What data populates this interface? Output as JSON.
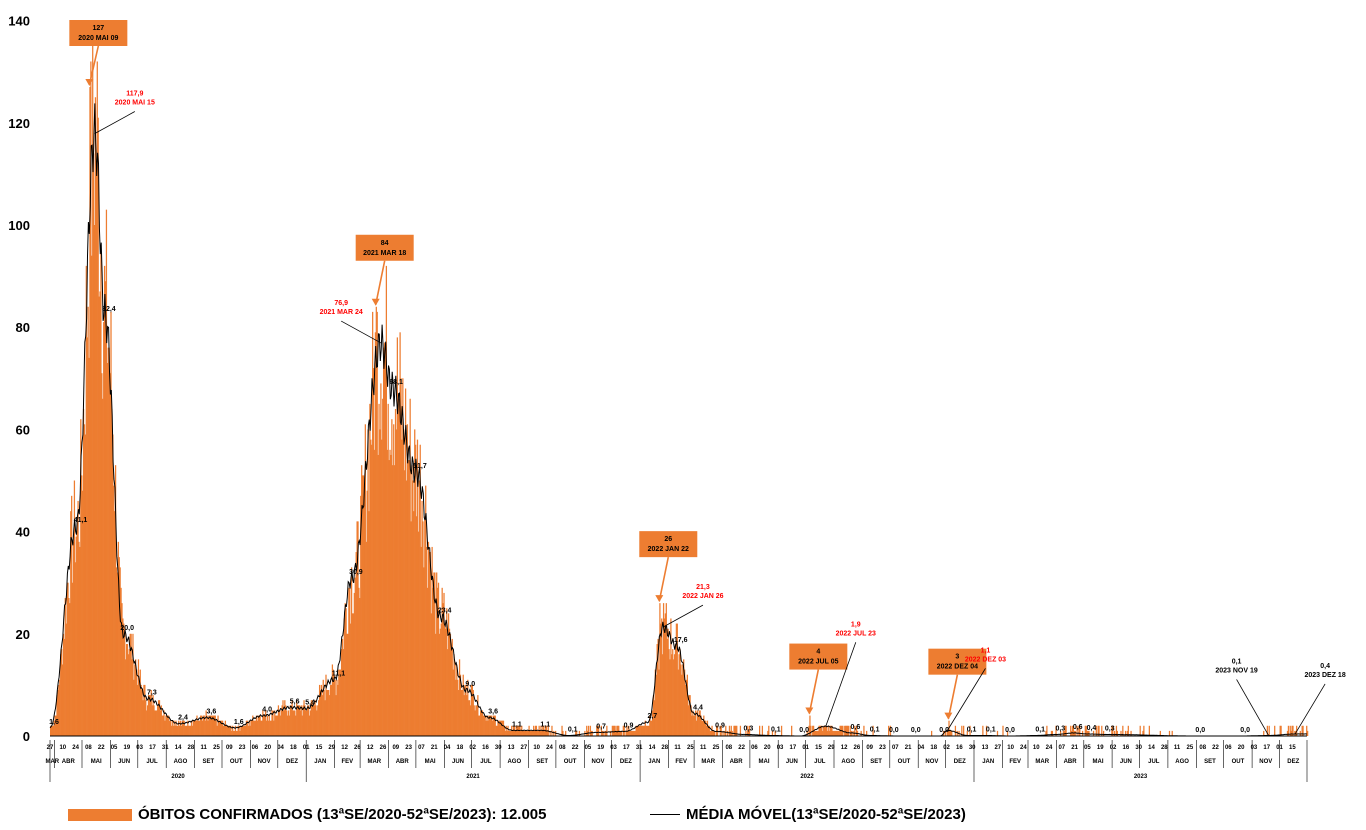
{
  "colors": {
    "bar": "#ED7D31",
    "line": "#000000",
    "callout_box": "#ED7D31",
    "callout_text": "#000000",
    "ma_label": "#FF0000"
  },
  "chart_data": {
    "type": "bar",
    "ylim": [
      0,
      140
    ],
    "yticks": [
      "0",
      "20",
      "40",
      "60",
      "80",
      "100",
      "120",
      "140"
    ],
    "grid": false,
    "legend_position": "bottom",
    "series": [
      {
        "name": "ÓBITOS CONFIRMADOS (13ªSE/2020-52ªSE/2023): 12.005",
        "type": "bar",
        "peaks": [
          {
            "date": "2020-05-09",
            "value": 127
          },
          {
            "date": "2021-03-18",
            "value": 84
          },
          {
            "date": "2022-01-22",
            "value": 26
          },
          {
            "date": "2022-07-05",
            "value": 4
          },
          {
            "date": "2022-12-04",
            "value": 3
          }
        ]
      },
      {
        "name": "MÉDIA MÓVEL(13ªSE/2020-52ªSE/2023)",
        "type": "line",
        "points": [
          [
            "2020-03-27",
            1.6
          ],
          [
            "2020-04-25",
            41.1
          ],
          [
            "2020-05-15",
            117.9
          ],
          [
            "2020-05-26",
            82.4
          ],
          [
            "2020-06-15",
            20.0
          ],
          [
            "2020-07-12",
            7.3
          ],
          [
            "2020-08-15",
            2.4
          ],
          [
            "2020-09-15",
            3.6
          ],
          [
            "2020-10-15",
            1.6
          ],
          [
            "2020-11-15",
            4.0
          ],
          [
            "2020-12-15",
            5.6
          ],
          [
            "2021-01-01",
            5.4
          ],
          [
            "2021-02-01",
            11.1
          ],
          [
            "2021-02-20",
            30.9
          ],
          [
            "2021-03-24",
            76.9
          ],
          [
            "2021-04-05",
            68.1
          ],
          [
            "2021-05-01",
            51.7
          ],
          [
            "2021-05-28",
            23.4
          ],
          [
            "2021-06-25",
            9.0
          ],
          [
            "2021-07-20",
            3.6
          ],
          [
            "2021-08-15",
            1.1
          ],
          [
            "2021-09-15",
            1.1
          ],
          [
            "2021-10-15",
            0.1
          ],
          [
            "2021-11-15",
            0.7
          ],
          [
            "2021-12-15",
            0.9
          ],
          [
            "2022-01-10",
            2.7
          ],
          [
            "2022-01-26",
            21.3
          ],
          [
            "2022-02-10",
            17.6
          ],
          [
            "2022-03-01",
            4.4
          ],
          [
            "2022-03-25",
            0.9
          ],
          [
            "2022-04-25",
            0.3
          ],
          [
            "2022-05-25",
            0.1
          ],
          [
            "2022-06-25",
            0.0
          ],
          [
            "2022-07-23",
            1.9
          ],
          [
            "2022-08-20",
            0.6
          ],
          [
            "2022-09-10",
            0.1
          ],
          [
            "2022-10-10",
            0.0
          ],
          [
            "2022-11-01",
            0.0
          ],
          [
            "2022-11-25",
            0.0
          ],
          [
            "2022-12-03",
            1.1
          ],
          [
            "2022-12-25",
            0.1
          ],
          [
            "2023-01-15",
            0.1
          ],
          [
            "2023-02-10",
            0.0
          ],
          [
            "2023-03-10",
            0.1
          ],
          [
            "2023-04-01",
            0.3
          ],
          [
            "2023-04-20",
            0.6
          ],
          [
            "2023-05-05",
            0.4
          ],
          [
            "2023-05-25",
            0.3
          ],
          [
            "2023-09-01",
            0.0
          ],
          [
            "2023-10-20",
            0.0
          ],
          [
            "2023-11-19",
            0.1
          ],
          [
            "2023-12-18",
            0.4
          ]
        ]
      }
    ],
    "data_labels": [
      {
        "date": "2020-03-27",
        "value": 1.6,
        "text": "1,6"
      },
      {
        "date": "2020-04-25",
        "value": 41.1,
        "text": "41,1"
      },
      {
        "date": "2020-05-26",
        "value": 82.4,
        "text": "82,4"
      },
      {
        "date": "2020-06-15",
        "value": 20.0,
        "text": "20,0"
      },
      {
        "date": "2020-07-12",
        "value": 7.3,
        "text": "7,3"
      },
      {
        "date": "2020-08-15",
        "value": 2.4,
        "text": "2,4"
      },
      {
        "date": "2020-09-15",
        "value": 3.6,
        "text": "3,6"
      },
      {
        "date": "2020-10-15",
        "value": 1.6,
        "text": "1,6"
      },
      {
        "date": "2020-11-15",
        "value": 4.0,
        "text": "4,0"
      },
      {
        "date": "2020-12-15",
        "value": 5.6,
        "text": "5,6"
      },
      {
        "date": "2021-01-01",
        "value": 5.4,
        "text": "5,4"
      },
      {
        "date": "2021-02-01",
        "value": 11.1,
        "text": "11,1"
      },
      {
        "date": "2021-02-20",
        "value": 30.9,
        "text": "30,9"
      },
      {
        "date": "2021-04-05",
        "value": 68.1,
        "text": "68,1"
      },
      {
        "date": "2021-05-01",
        "value": 51.7,
        "text": "51,7"
      },
      {
        "date": "2021-05-28",
        "value": 23.4,
        "text": "23,4"
      },
      {
        "date": "2021-06-25",
        "value": 9.0,
        "text": "9,0"
      },
      {
        "date": "2021-07-20",
        "value": 3.6,
        "text": "3,6"
      },
      {
        "date": "2021-08-15",
        "value": 1.1,
        "text": "1,1"
      },
      {
        "date": "2021-09-15",
        "value": 1.1,
        "text": "1,1"
      },
      {
        "date": "2021-10-15",
        "value": 0.1,
        "text": "0,1"
      },
      {
        "date": "2021-11-15",
        "value": 0.7,
        "text": "0,7"
      },
      {
        "date": "2021-12-15",
        "value": 0.9,
        "text": "0,9"
      },
      {
        "date": "2022-01-10",
        "value": 2.7,
        "text": "2,7"
      },
      {
        "date": "2022-02-10",
        "value": 17.6,
        "text": "17,6"
      },
      {
        "date": "2022-03-01",
        "value": 4.4,
        "text": "4,4"
      },
      {
        "date": "2022-03-25",
        "value": 0.9,
        "text": "0,9"
      },
      {
        "date": "2022-04-25",
        "value": 0.3,
        "text": "0,3"
      },
      {
        "date": "2022-05-25",
        "value": 0.1,
        "text": "0,1"
      },
      {
        "date": "2022-06-25",
        "value": 0.0,
        "text": "0,0"
      },
      {
        "date": "2022-08-20",
        "value": 0.6,
        "text": "0,6"
      },
      {
        "date": "2022-09-10",
        "value": 0.1,
        "text": "0,1"
      },
      {
        "date": "2022-10-01",
        "value": 0.0,
        "text": "0,0"
      },
      {
        "date": "2022-10-25",
        "value": 0.0,
        "text": "0,0"
      },
      {
        "date": "2022-11-25",
        "value": 0.0,
        "text": "0,0"
      },
      {
        "date": "2022-12-25",
        "value": 0.1,
        "text": "0,1"
      },
      {
        "date": "2023-01-15",
        "value": 0.1,
        "text": "0,1"
      },
      {
        "date": "2023-02-05",
        "value": 0.0,
        "text": "0,0"
      },
      {
        "date": "2023-03-10",
        "value": 0.1,
        "text": "0,1"
      },
      {
        "date": "2023-04-01",
        "value": 0.3,
        "text": "0,3"
      },
      {
        "date": "2023-04-20",
        "value": 0.6,
        "text": "0,6"
      },
      {
        "date": "2023-05-05",
        "value": 0.4,
        "text": "0,4"
      },
      {
        "date": "2023-05-25",
        "value": 0.3,
        "text": "0,3"
      },
      {
        "date": "2023-09-01",
        "value": 0.0,
        "text": "0,0"
      },
      {
        "date": "2023-10-20",
        "value": 0.0,
        "text": "0,0"
      }
    ],
    "callouts": [
      {
        "kind": "box",
        "value_text": "127",
        "date_text": "2020 MAI 09",
        "date": "2020-05-09",
        "value": 127
      },
      {
        "kind": "box",
        "value_text": "84",
        "date_text": "2021 MAR 18",
        "date": "2021-03-18",
        "value": 84
      },
      {
        "kind": "box",
        "value_text": "26",
        "date_text": "2022 JAN 22",
        "date": "2022-01-22",
        "value": 26
      },
      {
        "kind": "box",
        "value_text": "4",
        "date_text": "2022 JUL 05",
        "date": "2022-07-05",
        "value": 4
      },
      {
        "kind": "box",
        "value_text": "3",
        "date_text": "2022 DEZ 04",
        "date": "2022-12-04",
        "value": 3
      },
      {
        "kind": "red",
        "value_text": "117,9",
        "date_text": "2020 MAI 15",
        "date": "2020-05-15",
        "value": 117.9
      },
      {
        "kind": "red",
        "value_text": "76,9",
        "date_text": "2021 MAR 24",
        "date": "2021-03-24",
        "value": 76.9
      },
      {
        "kind": "red",
        "value_text": "21,3",
        "date_text": "2022 JAN 26",
        "date": "2022-01-26",
        "value": 21.3
      },
      {
        "kind": "red",
        "value_text": "1,9",
        "date_text": "2022 JUL 23",
        "date": "2022-07-23",
        "value": 1.9
      },
      {
        "kind": "red",
        "value_text": "1,1",
        "date_text": "2022 DEZ 03",
        "date": "2022-12-03",
        "value": 1.1
      },
      {
        "kind": "black",
        "value_text": "0,1",
        "date_text": "2023 NOV 19",
        "date": "2023-11-19",
        "value": 0.1
      },
      {
        "kind": "black",
        "value_text": "0,4",
        "date_text": "2023 DEZ 18",
        "date": "2023-12-18",
        "value": 0.4
      }
    ],
    "x_axis": {
      "start": "2020-03-27",
      "end": "2023-12-31",
      "day_ticks": [
        [
          "2020-03-27",
          "27"
        ],
        [
          "2020-04-10",
          "10"
        ],
        [
          "2020-04-24",
          "24"
        ],
        [
          "2020-05-08",
          "08"
        ],
        [
          "2020-05-22",
          "22"
        ],
        [
          "2020-06-05",
          "05"
        ],
        [
          "2020-06-19",
          "19"
        ],
        [
          "2020-07-03",
          "03"
        ],
        [
          "2020-07-17",
          "17"
        ],
        [
          "2020-07-31",
          "31"
        ],
        [
          "2020-08-14",
          "14"
        ],
        [
          "2020-08-28",
          "28"
        ],
        [
          "2020-09-11",
          "11"
        ],
        [
          "2020-09-25",
          "25"
        ],
        [
          "2020-10-09",
          "09"
        ],
        [
          "2020-10-23",
          "23"
        ],
        [
          "2020-11-06",
          "06"
        ],
        [
          "2020-11-20",
          "20"
        ],
        [
          "2020-12-04",
          "04"
        ],
        [
          "2020-12-18",
          "18"
        ],
        [
          "2021-01-01",
          "01"
        ],
        [
          "2021-01-15",
          "15"
        ],
        [
          "2021-01-29",
          "29"
        ],
        [
          "2021-02-12",
          "12"
        ],
        [
          "2021-02-26",
          "26"
        ],
        [
          "2021-03-12",
          "12"
        ],
        [
          "2021-03-26",
          "26"
        ],
        [
          "2021-04-09",
          "09"
        ],
        [
          "2021-04-23",
          "23"
        ],
        [
          "2021-05-07",
          "07"
        ],
        [
          "2021-05-21",
          "21"
        ],
        [
          "2021-06-04",
          "04"
        ],
        [
          "2021-06-18",
          "18"
        ],
        [
          "2021-07-02",
          "02"
        ],
        [
          "2021-07-16",
          "16"
        ],
        [
          "2021-07-30",
          "30"
        ],
        [
          "2021-08-13",
          "13"
        ],
        [
          "2021-08-27",
          "27"
        ],
        [
          "2021-09-10",
          "10"
        ],
        [
          "2021-09-24",
          "24"
        ],
        [
          "2021-10-08",
          "08"
        ],
        [
          "2021-10-22",
          "22"
        ],
        [
          "2021-11-05",
          "05"
        ],
        [
          "2021-11-19",
          "19"
        ],
        [
          "2021-12-03",
          "03"
        ],
        [
          "2021-12-17",
          "17"
        ],
        [
          "2021-12-31",
          "31"
        ],
        [
          "2022-01-14",
          "14"
        ],
        [
          "2022-01-28",
          "28"
        ],
        [
          "2022-02-11",
          "11"
        ],
        [
          "2022-02-25",
          "25"
        ],
        [
          "2022-03-11",
          "11"
        ],
        [
          "2022-03-25",
          "25"
        ],
        [
          "2022-04-08",
          "08"
        ],
        [
          "2022-04-22",
          "22"
        ],
        [
          "2022-05-06",
          "06"
        ],
        [
          "2022-05-20",
          "20"
        ],
        [
          "2022-06-03",
          "03"
        ],
        [
          "2022-06-17",
          "17"
        ],
        [
          "2022-07-01",
          "01"
        ],
        [
          "2022-07-15",
          "15"
        ],
        [
          "2022-07-29",
          "29"
        ],
        [
          "2022-08-12",
          "12"
        ],
        [
          "2022-08-26",
          "26"
        ],
        [
          "2022-09-09",
          "09"
        ],
        [
          "2022-09-23",
          "23"
        ],
        [
          "2022-10-07",
          "07"
        ],
        [
          "2022-10-21",
          "21"
        ],
        [
          "2022-11-04",
          "04"
        ],
        [
          "2022-11-18",
          "18"
        ],
        [
          "2022-12-02",
          "02"
        ],
        [
          "2022-12-16",
          "16"
        ],
        [
          "2022-12-30",
          "30"
        ],
        [
          "2023-01-13",
          "13"
        ],
        [
          "2023-01-27",
          "27"
        ],
        [
          "2023-02-10",
          "10"
        ],
        [
          "2023-02-24",
          "24"
        ],
        [
          "2023-03-10",
          "10"
        ],
        [
          "2023-03-24",
          "24"
        ],
        [
          "2023-04-07",
          "07"
        ],
        [
          "2023-04-21",
          "21"
        ],
        [
          "2023-05-05",
          "05"
        ],
        [
          "2023-05-19",
          "19"
        ],
        [
          "2023-06-02",
          "02"
        ],
        [
          "2023-06-16",
          "16"
        ],
        [
          "2023-06-30",
          "30"
        ],
        [
          "2023-07-14",
          "14"
        ],
        [
          "2023-07-28",
          "28"
        ],
        [
          "2023-08-11",
          "11"
        ],
        [
          "2023-08-25",
          "25"
        ],
        [
          "2023-09-08",
          "08"
        ],
        [
          "2023-09-22",
          "22"
        ],
        [
          "2023-10-06",
          "06"
        ],
        [
          "2023-10-20",
          "20"
        ],
        [
          "2023-11-03",
          "03"
        ],
        [
          "2023-11-17",
          "17"
        ],
        [
          "2023-12-01",
          "01"
        ],
        [
          "2023-12-15",
          "15"
        ]
      ],
      "month_labels": [
        "JAN",
        "FEV",
        "MAR",
        "ABR",
        "MAI",
        "JUN",
        "JUL",
        "AGO",
        "SET",
        "OUT",
        "NOV",
        "DEZ"
      ],
      "years": [
        "2020",
        "2021",
        "2022",
        "2023"
      ]
    }
  },
  "legend": {
    "bars_label": "ÓBITOS CONFIRMADOS (13ªSE/2020-52ªSE/2023): 12.005",
    "line_label": "MÉDIA MÓVEL(13ªSE/2020-52ªSE/2023)"
  }
}
